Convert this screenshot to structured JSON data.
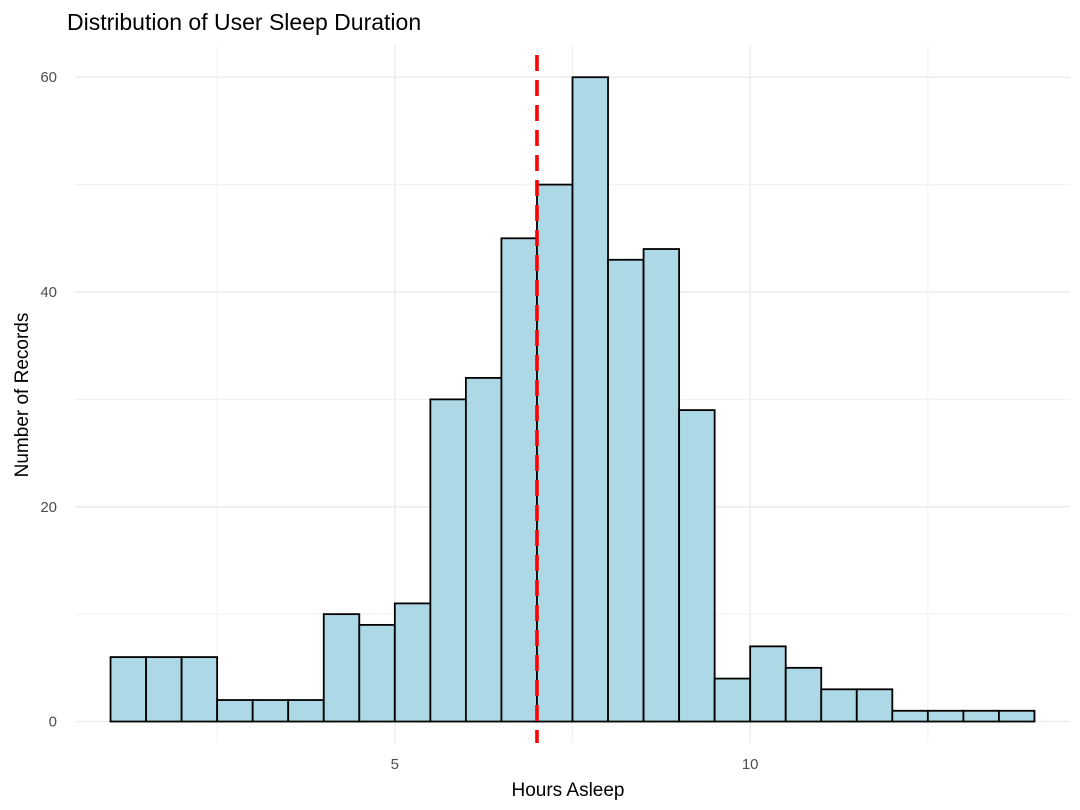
{
  "chart_data": {
    "type": "bar",
    "title": "Distribution of User Sleep Duration",
    "xlabel": "Hours Asleep",
    "ylabel": "Number of Records",
    "bin_width": 0.5,
    "bins_start": [
      1,
      1.5,
      2,
      2.5,
      3,
      3.5,
      4,
      4.5,
      5,
      5.5,
      6,
      6.5,
      7,
      7.5,
      8,
      8.5,
      9,
      9.5,
      10,
      10.5,
      11,
      11.5,
      12,
      12.5,
      13,
      13.5
    ],
    "values": [
      6,
      6,
      6,
      2,
      2,
      2,
      10,
      9,
      11,
      30,
      32,
      45,
      50,
      60,
      43,
      44,
      29,
      4,
      7,
      5,
      3,
      3,
      1,
      1,
      1,
      1
    ],
    "xlim": [
      0.5,
      14.5
    ],
    "ylim": [
      -2,
      63
    ],
    "x_ticks": [
      5,
      10
    ],
    "y_ticks": [
      0,
      20,
      40,
      60
    ],
    "reference_line": {
      "x": 7,
      "color": "#ff0000",
      "style": "dashed"
    },
    "bar_fill": "#add8e6",
    "bar_stroke": "#000000",
    "grid": true
  }
}
